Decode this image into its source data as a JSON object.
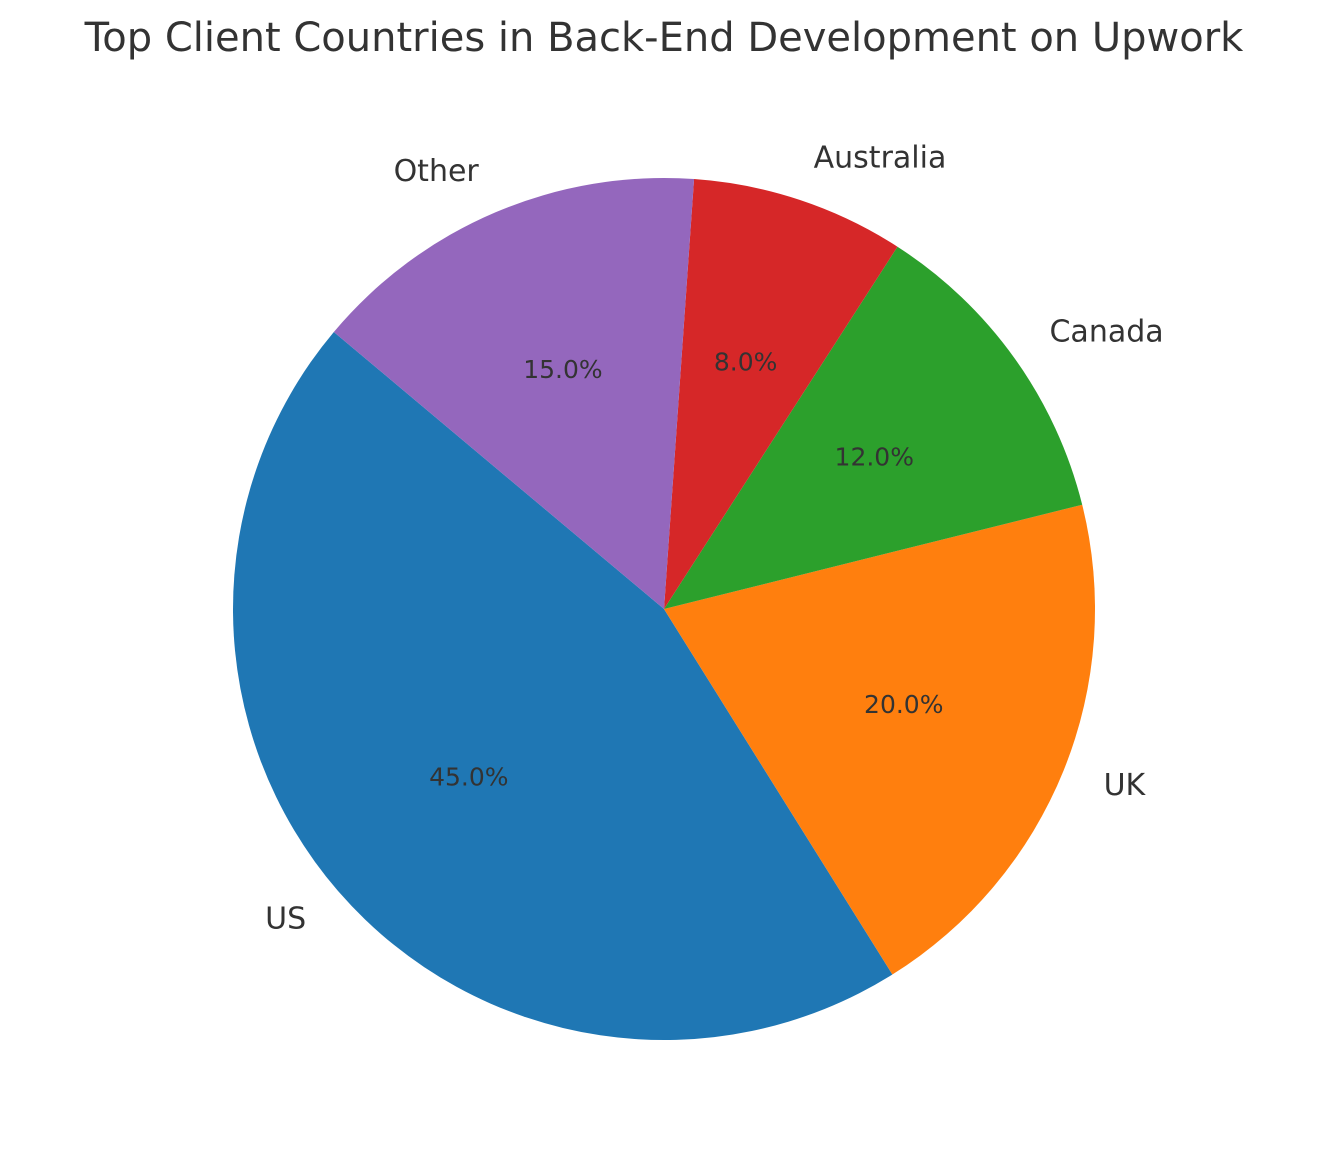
{
  "chart_data": {
    "type": "pie",
    "title": "Top Client Countries in Back-End Development on Upwork",
    "categories": [
      "US",
      "UK",
      "Canada",
      "Australia",
      "Other"
    ],
    "values": [
      45,
      20,
      12,
      8,
      15
    ],
    "value_labels": [
      "45.0%",
      "20.0%",
      "12.0%",
      "8.0%",
      "15.0%"
    ],
    "colors": [
      "#1f77b4",
      "#ff7f0e",
      "#2ca02c",
      "#d62728",
      "#9467bd"
    ],
    "start_angle": 140
  }
}
